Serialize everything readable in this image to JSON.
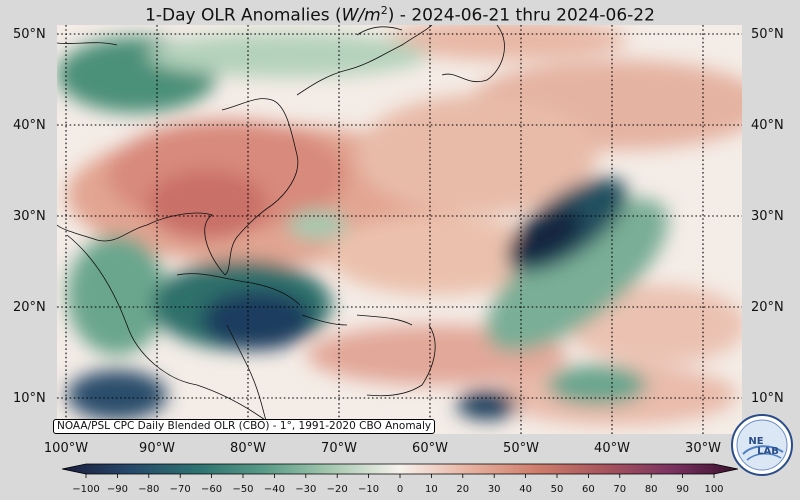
{
  "title": {
    "prefix": "1-Day OLR Anomalies (",
    "unit_var": "W/m",
    "unit_exp": "2",
    "suffix": ") - 2024-06-21 thru 2024-06-22"
  },
  "map": {
    "projection": "equirectangular",
    "lon_range": [
      -101,
      -26
    ],
    "lat_range": [
      6,
      51
    ],
    "gridlines": "dotted",
    "lat_labels": [
      "50°N",
      "40°N",
      "30°N",
      "20°N",
      "10°N"
    ],
    "lon_labels": [
      "100°W",
      "90°W",
      "80°W",
      "70°W",
      "60°W",
      "50°W",
      "40°W",
      "30°W"
    ],
    "credit": "NOAA/PSL CPC Daily Blended OLR (CBO) - 1°, 1991-2020 CBO Anomaly",
    "colors": {
      "strong_negative": "#1a2a4e",
      "negative": "#2f6e68",
      "weak_negative": "#a9cbb2",
      "neutral": "#f4ece6",
      "positive": "#e4ac98",
      "strong_positive": "#c46a63"
    }
  },
  "colorbar": {
    "min": -100,
    "max": 100,
    "ticks": [
      "−100",
      "−90",
      "−80",
      "−70",
      "−60",
      "−50",
      "−40",
      "−30",
      "−20",
      "−10",
      "0",
      "10",
      "20",
      "30",
      "40",
      "50",
      "60",
      "70",
      "80",
      "90",
      "100"
    ],
    "stops": [
      "#1b1d3d",
      "#26486a",
      "#2d7271",
      "#5a9b87",
      "#a7c9b1",
      "#f6f1ec",
      "#e8b4a2",
      "#cf7e6c",
      "#a9565e",
      "#7c3360",
      "#3a0f2e"
    ]
  },
  "logo": {
    "text_top": "NE",
    "text_bottom": "LAB",
    "icon": "noaa-psl-logo-icon"
  }
}
